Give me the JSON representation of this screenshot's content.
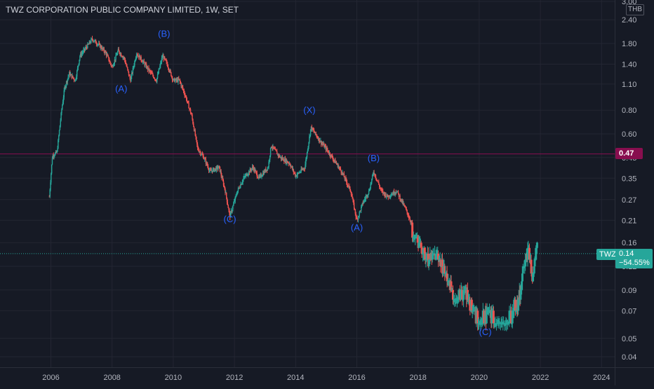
{
  "header": {
    "title": "TWZ CORPORATION PUBLIC COMPANY LIMITED, 1W, SET",
    "currency": "THB"
  },
  "price_tags": {
    "ticker": "TWZ",
    "last_price": "0.14",
    "change_percent": "−54.55%",
    "horizontal_line_value": "0.47"
  },
  "colors": {
    "background": "#161a25",
    "grid": "#232632",
    "up": "#26a69a",
    "down": "#ef5350",
    "horizontal_line": "#880e4f",
    "wave_labels": "#2962ff",
    "axis_text": "#b2b5be"
  },
  "chart_data": {
    "type": "candlestick",
    "title": "TWZ CORPORATION PUBLIC COMPANY LIMITED, 1W, SET",
    "y_scale": "log",
    "x_range": [
      2005.2,
      2024.7
    ],
    "y_range": [
      0.034,
      3.2
    ],
    "x_ticks": [
      "2006",
      "2008",
      "2010",
      "2012",
      "2014",
      "2016",
      "2018",
      "2020",
      "2022",
      "2024"
    ],
    "y_ticks": [
      "0.04",
      "0.05",
      "0.07",
      "0.09",
      "0.12",
      "0.16",
      "0.21",
      "0.27",
      "0.35",
      "0.45",
      "0.60",
      "0.80",
      "1.10",
      "1.40",
      "1.80",
      "2.40",
      "3.00"
    ],
    "grid": true,
    "horizontal_line": 0.47,
    "last_price": 0.14,
    "change_percent": -54.55,
    "price_path": [
      [
        2005.95,
        0.28
      ],
      [
        2006.05,
        0.46
      ],
      [
        2006.2,
        0.48
      ],
      [
        2006.35,
        0.8
      ],
      [
        2006.45,
        1.05
      ],
      [
        2006.6,
        1.25
      ],
      [
        2006.8,
        1.15
      ],
      [
        2006.95,
        1.55
      ],
      [
        2007.2,
        1.75
      ],
      [
        2007.35,
        1.9
      ],
      [
        2007.6,
        1.75
      ],
      [
        2007.8,
        1.6
      ],
      [
        2008.0,
        1.35
      ],
      [
        2008.2,
        1.65
      ],
      [
        2008.4,
        1.5
      ],
      [
        2008.6,
        1.15
      ],
      [
        2008.8,
        1.6
      ],
      [
        2009.0,
        1.45
      ],
      [
        2009.2,
        1.3
      ],
      [
        2009.45,
        1.15
      ],
      [
        2009.65,
        1.55
      ],
      [
        2009.8,
        1.4
      ],
      [
        2010.0,
        1.15
      ],
      [
        2010.2,
        1.15
      ],
      [
        2010.4,
        0.95
      ],
      [
        2010.6,
        0.75
      ],
      [
        2010.8,
        0.5
      ],
      [
        2011.0,
        0.45
      ],
      [
        2011.2,
        0.38
      ],
      [
        2011.5,
        0.4
      ],
      [
        2011.7,
        0.3
      ],
      [
        2011.85,
        0.22
      ],
      [
        2012.1,
        0.3
      ],
      [
        2012.3,
        0.35
      ],
      [
        2012.6,
        0.4
      ],
      [
        2012.8,
        0.35
      ],
      [
        2013.1,
        0.4
      ],
      [
        2013.2,
        0.52
      ],
      [
        2013.5,
        0.45
      ],
      [
        2013.8,
        0.42
      ],
      [
        2014.0,
        0.36
      ],
      [
        2014.3,
        0.4
      ],
      [
        2014.5,
        0.65
      ],
      [
        2014.8,
        0.55
      ],
      [
        2015.0,
        0.5
      ],
      [
        2015.2,
        0.45
      ],
      [
        2015.5,
        0.38
      ],
      [
        2015.8,
        0.3
      ],
      [
        2016.0,
        0.21
      ],
      [
        2016.2,
        0.26
      ],
      [
        2016.4,
        0.3
      ],
      [
        2016.55,
        0.38
      ],
      [
        2016.8,
        0.3
      ],
      [
        2017.0,
        0.28
      ],
      [
        2017.3,
        0.3
      ],
      [
        2017.6,
        0.24
      ],
      [
        2017.8,
        0.2
      ],
      [
        2018.0,
        0.16
      ],
      [
        2018.3,
        0.13
      ],
      [
        2018.6,
        0.14
      ],
      [
        2018.9,
        0.11
      ],
      [
        2019.2,
        0.08
      ],
      [
        2019.5,
        0.09
      ],
      [
        2019.8,
        0.07
      ],
      [
        2020.0,
        0.06
      ],
      [
        2020.3,
        0.07
      ],
      [
        2020.6,
        0.06
      ],
      [
        2020.9,
        0.06
      ],
      [
        2021.1,
        0.07
      ],
      [
        2021.3,
        0.08
      ],
      [
        2021.45,
        0.12
      ],
      [
        2021.6,
        0.15
      ],
      [
        2021.75,
        0.1
      ],
      [
        2021.85,
        0.14
      ],
      [
        2021.9,
        0.16
      ]
    ]
  },
  "wave_labels": [
    {
      "text": "(A)",
      "year": 2008.3,
      "price": 1.0
    },
    {
      "text": "(B)",
      "year": 2009.7,
      "price": 1.95
    },
    {
      "text": "(C)",
      "year": 2011.85,
      "price": 0.205
    },
    {
      "text": "(X)",
      "year": 2014.45,
      "price": 0.77
    },
    {
      "text": "(A)",
      "year": 2016.0,
      "price": 0.185
    },
    {
      "text": "(B)",
      "year": 2016.55,
      "price": 0.43
    },
    {
      "text": "(C)",
      "year": 2020.2,
      "price": 0.052
    }
  ]
}
